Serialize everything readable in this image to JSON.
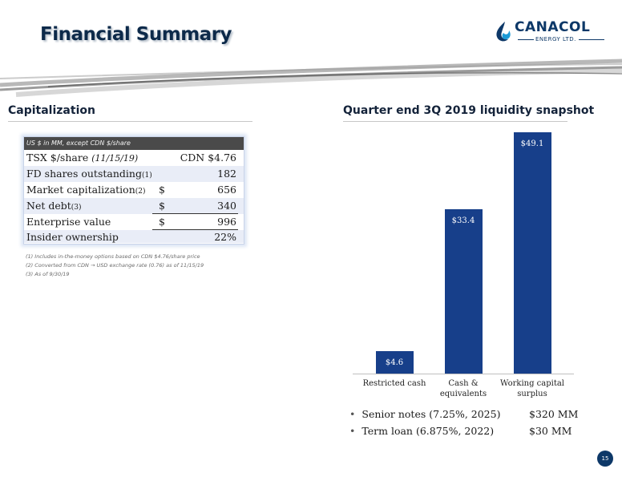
{
  "slide": {
    "title": "Financial Summary",
    "page_number": "15"
  },
  "logo": {
    "name": "CANACOL",
    "sub": "ENERGY LTD.",
    "color": "#0d3868"
  },
  "capitalization": {
    "section_title": "Capitalization",
    "header": "US $ in MM, except CDN $/share",
    "rows": [
      {
        "label": "TSX $/share",
        "note": "(11/15/19)",
        "dollar": "",
        "value": "CDN $4.76"
      },
      {
        "label": "FD shares outstanding",
        "note": "(1)",
        "dollar": "",
        "value": "182"
      },
      {
        "label": "Market capitalization",
        "note": "(2)",
        "dollar": "$",
        "value": "656"
      },
      {
        "label": "Net debt",
        "note": "(3)",
        "dollar": "$",
        "value": "340"
      },
      {
        "label": "Enterprise value",
        "note": "",
        "dollar": "$",
        "value": "996"
      },
      {
        "label": "Insider ownership",
        "note": "",
        "dollar": "",
        "value": "22%"
      }
    ],
    "footnotes": [
      "(1)     Includes in-the-money options based on CDN $4.76/share price",
      "(2) Converted from CDN → USD exchange rate (0.76) as of 11/15/19",
      "(3) As of 9/30/19"
    ]
  },
  "liquidity": {
    "section_title": "Quarter end 3Q 2019 liquidity snapshot",
    "bullets": [
      {
        "label": "Senior notes (7.25%, 2025)",
        "amount": "$320 MM"
      },
      {
        "label": "Term loan (6.875%, 2022)",
        "amount": "$30 MM"
      }
    ]
  },
  "chart_data": {
    "type": "bar",
    "categories": [
      "Restricted cash",
      "Cash & equivalents",
      "Working capital surplus"
    ],
    "category_lines": [
      [
        "Restricted cash"
      ],
      [
        "Cash &",
        "equivalents"
      ],
      [
        "Working capital",
        "surplus"
      ]
    ],
    "values": [
      4.6,
      33.4,
      49.1
    ],
    "data_labels": [
      "$4.6",
      "$33.4",
      "$49.1"
    ],
    "bar_color": "#173f8a",
    "title": "Quarter end 3Q 2019 liquidity snapshot",
    "ylim": [
      0,
      49.1
    ]
  }
}
